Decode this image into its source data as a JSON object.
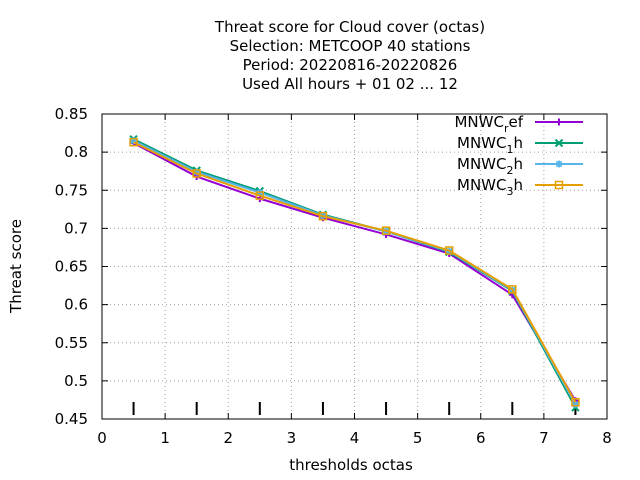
{
  "chart_data": {
    "type": "line",
    "title_lines": [
      "Threat score  for Cloud cover (octas)",
      "Selection: METCOOP     40 stations",
      "Period: 20220816-20220826",
      "Used  All hours + 01 02 ... 12"
    ],
    "xlabel": "thresholds octas",
    "ylabel": "Threat score",
    "xlim": [
      0,
      8
    ],
    "ylim": [
      0.45,
      0.85
    ],
    "xticks": [
      0,
      1,
      2,
      3,
      4,
      5,
      6,
      7,
      8
    ],
    "yticks": [
      0.45,
      0.5,
      0.55,
      0.6,
      0.65,
      0.7,
      0.75,
      0.8,
      0.85
    ],
    "grid": true,
    "legend_position": "top-right",
    "x": [
      0.5,
      1.5,
      2.5,
      3.5,
      4.5,
      5.5,
      6.5,
      7.5
    ],
    "bottom_markers_x": [
      0.5,
      1.5,
      2.5,
      3.5,
      4.5,
      5.5,
      6.5,
      7.5
    ],
    "series": [
      {
        "name": "MNWC",
        "sub": "r",
        "suffix": "ef",
        "color": "#9400d3",
        "marker": "plus",
        "values": [
          0.812,
          0.768,
          0.739,
          0.714,
          0.692,
          0.667,
          0.613,
          0.474
        ]
      },
      {
        "name": "MNWC",
        "sub": "1",
        "suffix": "h",
        "color": "#009e73",
        "marker": "cross",
        "values": [
          0.817,
          0.776,
          0.749,
          0.718,
          0.696,
          0.669,
          0.618,
          0.465
        ]
      },
      {
        "name": "MNWC",
        "sub": "2",
        "suffix": "h",
        "color": "#56b4e9",
        "marker": "star",
        "values": [
          0.815,
          0.774,
          0.747,
          0.717,
          0.696,
          0.67,
          0.619,
          0.469
        ]
      },
      {
        "name": "MNWC",
        "sub": "3",
        "suffix": "h",
        "color": "#e69f00",
        "marker": "box",
        "values": [
          0.813,
          0.772,
          0.743,
          0.716,
          0.697,
          0.671,
          0.62,
          0.472
        ]
      }
    ]
  }
}
